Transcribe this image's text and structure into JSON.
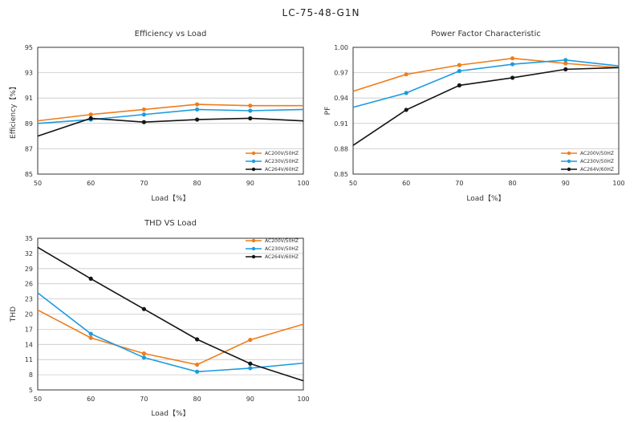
{
  "page_title": "LC-75-48-G1N",
  "colors": {
    "orange": "#ee7d1c",
    "blue": "#1c9be0",
    "black": "#141414"
  },
  "legend_labels": [
    "AC200V/50HZ",
    "AC230V/50HZ",
    "AC264V/60HZ"
  ],
  "chart_data": [
    {
      "type": "line",
      "title": "Efficiency vs Load",
      "xlabel": "Load【%】",
      "ylabel": "Efficiency【%】",
      "xlim": [
        50,
        100
      ],
      "ylim": [
        85,
        95
      ],
      "xticks": [
        "50",
        "60",
        "70",
        "80",
        "90",
        "100"
      ],
      "yticks": [
        "85",
        "87",
        "89",
        "91",
        "93",
        "95"
      ],
      "legend_position": "bottom-right",
      "series": [
        {
          "name": "AC200V/50HZ",
          "x": [
            50,
            60,
            70,
            80,
            90,
            100
          ],
          "values": [
            89.2,
            89.7,
            90.1,
            90.5,
            90.4,
            90.4
          ],
          "markers": [
            false,
            true,
            true,
            true,
            true,
            false
          ]
        },
        {
          "name": "AC230V/50HZ",
          "x": [
            50,
            60,
            70,
            80,
            90,
            100
          ],
          "values": [
            89.0,
            89.3,
            89.7,
            90.1,
            90.0,
            90.1
          ],
          "markers": [
            false,
            true,
            true,
            true,
            true,
            false
          ]
        },
        {
          "name": "AC264V/60HZ",
          "x": [
            50,
            60,
            70,
            80,
            90,
            100
          ],
          "values": [
            88.0,
            89.4,
            89.1,
            89.3,
            89.4,
            89.2
          ],
          "markers": [
            false,
            true,
            true,
            true,
            true,
            false
          ]
        }
      ]
    },
    {
      "type": "line",
      "title": "Power Factor Characteristic",
      "xlabel": "Load【%】",
      "ylabel": "PF",
      "xlim": [
        50,
        100
      ],
      "ylim": [
        0.85,
        1.0
      ],
      "xticks": [
        "50",
        "60",
        "70",
        "80",
        "90",
        "100"
      ],
      "yticks": [
        "0.85",
        "0.88",
        "0.91",
        "0.94",
        "0.97",
        "1.00"
      ],
      "legend_position": "bottom-right",
      "series": [
        {
          "name": "AC200V/50HZ",
          "x": [
            50,
            60,
            70,
            80,
            90,
            100
          ],
          "values": [
            0.948,
            0.968,
            0.979,
            0.987,
            0.981,
            0.976
          ],
          "markers": [
            false,
            true,
            true,
            true,
            true,
            false
          ]
        },
        {
          "name": "AC230V/50HZ",
          "x": [
            50,
            60,
            70,
            80,
            90,
            100
          ],
          "values": [
            0.929,
            0.946,
            0.972,
            0.98,
            0.985,
            0.978
          ],
          "markers": [
            false,
            true,
            true,
            true,
            true,
            false
          ]
        },
        {
          "name": "AC264V/60HZ",
          "x": [
            50,
            60,
            70,
            80,
            90,
            100
          ],
          "values": [
            0.884,
            0.926,
            0.955,
            0.964,
            0.974,
            0.976
          ],
          "markers": [
            false,
            true,
            true,
            true,
            true,
            false
          ]
        }
      ]
    },
    {
      "type": "line",
      "title": "THD VS Load",
      "xlabel": "Load【%】",
      "ylabel": "THD",
      "xlim": [
        50,
        100
      ],
      "ylim": [
        5,
        35
      ],
      "xticks": [
        "50",
        "60",
        "70",
        "80",
        "90",
        "100"
      ],
      "yticks": [
        "5",
        "8",
        "11",
        "14",
        "17",
        "20",
        "23",
        "26",
        "29",
        "32",
        "35"
      ],
      "legend_position": "top-right",
      "series": [
        {
          "name": "AC200V/50HZ",
          "x": [
            50,
            60,
            70,
            80,
            90,
            100
          ],
          "values": [
            20.8,
            15.3,
            12.2,
            10.0,
            14.9,
            18.0
          ],
          "markers": [
            false,
            true,
            true,
            true,
            true,
            false
          ]
        },
        {
          "name": "AC230V/50HZ",
          "x": [
            50,
            60,
            70,
            80,
            90,
            100
          ],
          "values": [
            24.2,
            16.1,
            11.4,
            8.6,
            9.3,
            10.3
          ],
          "markers": [
            false,
            true,
            true,
            true,
            true,
            false
          ]
        },
        {
          "name": "AC264V/60HZ",
          "x": [
            50,
            60,
            70,
            80,
            90,
            100
          ],
          "values": [
            33.2,
            27.0,
            21.0,
            15.0,
            10.2,
            6.8
          ],
          "markers": [
            false,
            true,
            true,
            true,
            true,
            false
          ]
        }
      ]
    }
  ]
}
